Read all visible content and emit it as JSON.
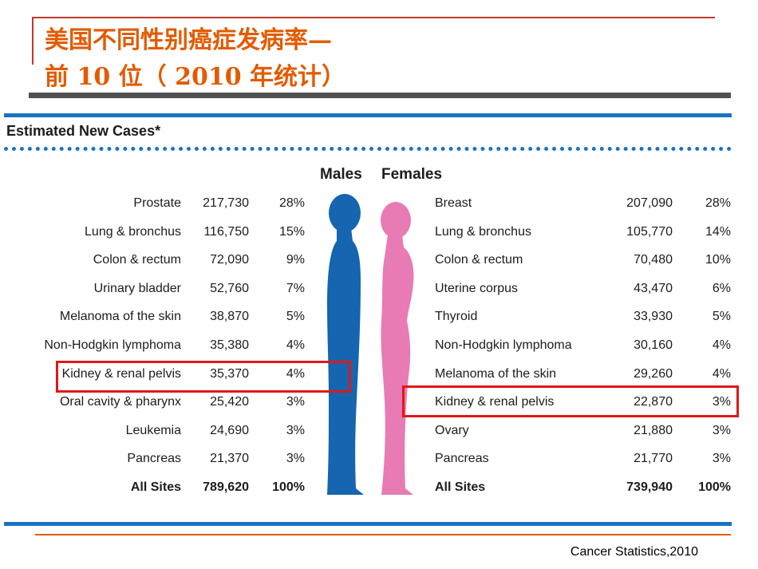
{
  "slide": {
    "title_line1": "美国不同性别癌症发病率—",
    "title_line2": "前 10 位（ 2010 年统计）",
    "subtitle": "Estimated New Cases*",
    "source": "Cancer Statistics,2010"
  },
  "table": {
    "males_header": "Males",
    "females_header": "Females",
    "males": [
      {
        "site": "Prostate",
        "cases": "217,730",
        "pct": "28%"
      },
      {
        "site": "Lung & bronchus",
        "cases": "116,750",
        "pct": "15%"
      },
      {
        "site": "Colon & rectum",
        "cases": "72,090",
        "pct": "9%"
      },
      {
        "site": "Urinary bladder",
        "cases": "52,760",
        "pct": "7%"
      },
      {
        "site": "Melanoma of the skin",
        "cases": "38,870",
        "pct": "5%"
      },
      {
        "site": "Non-Hodgkin lymphoma",
        "cases": "35,380",
        "pct": "4%"
      },
      {
        "site": "Kidney & renal pelvis",
        "cases": "35,370",
        "pct": "4%"
      },
      {
        "site": "Oral cavity & pharynx",
        "cases": "25,420",
        "pct": "3%"
      },
      {
        "site": "Leukemia",
        "cases": "24,690",
        "pct": "3%"
      },
      {
        "site": "Pancreas",
        "cases": "21,370",
        "pct": "3%"
      },
      {
        "site": "All Sites",
        "cases": "789,620",
        "pct": "100%"
      }
    ],
    "females": [
      {
        "site": "Breast",
        "cases": "207,090",
        "pct": "28%"
      },
      {
        "site": "Lung & bronchus",
        "cases": "105,770",
        "pct": "14%"
      },
      {
        "site": "Colon & rectum",
        "cases": "70,480",
        "pct": "10%"
      },
      {
        "site": "Uterine corpus",
        "cases": "43,470",
        "pct": "6%"
      },
      {
        "site": "Thyroid",
        "cases": "33,930",
        "pct": "5%"
      },
      {
        "site": "Non-Hodgkin lymphoma",
        "cases": "30,160",
        "pct": "4%"
      },
      {
        "site": "Melanoma of the skin",
        "cases": "29,260",
        "pct": "4%"
      },
      {
        "site": "Kidney & renal pelvis",
        "cases": "22,870",
        "pct": "3%"
      },
      {
        "site": "Ovary",
        "cases": "21,880",
        "pct": "3%"
      },
      {
        "site": "Pancreas",
        "cases": "21,770",
        "pct": "3%"
      },
      {
        "site": "All Sites",
        "cases": "739,940",
        "pct": "100%"
      }
    ]
  },
  "colors": {
    "title": "#e35b00",
    "rule_blue": "#1a73c0",
    "highlight": "#e01818",
    "male_figure": "#1565b0",
    "female_figure": "#e87bb4"
  }
}
